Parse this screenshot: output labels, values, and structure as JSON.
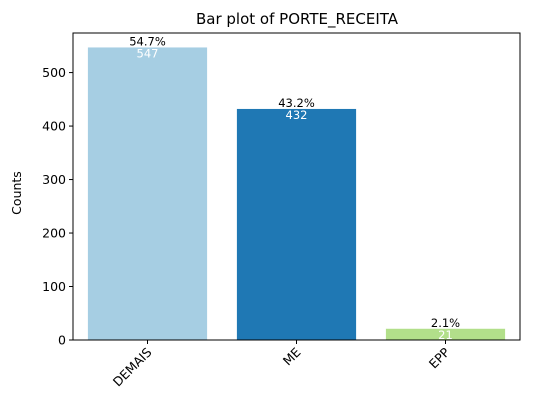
{
  "chart_data": {
    "type": "bar",
    "title": "Bar plot of PORTE_RECEITA",
    "xlabel": "",
    "ylabel": "Counts",
    "categories": [
      "DEMAIS",
      "ME",
      "EPP"
    ],
    "values": [
      547,
      432,
      21
    ],
    "percent_labels": [
      "54.7%",
      "43.2%",
      "2.1%"
    ],
    "value_labels": [
      "547",
      "432",
      "21"
    ],
    "colors": [
      "#a6cee3",
      "#1f78b4",
      "#b2df8a"
    ],
    "ylim": [
      0,
      574
    ],
    "yticks": [
      0,
      100,
      200,
      300,
      400,
      500
    ],
    "ytick_labels": [
      "0",
      "100",
      "200",
      "300",
      "400",
      "500"
    ],
    "xtick_rotation": "45 degrees",
    "grid": false,
    "legend": "none"
  }
}
